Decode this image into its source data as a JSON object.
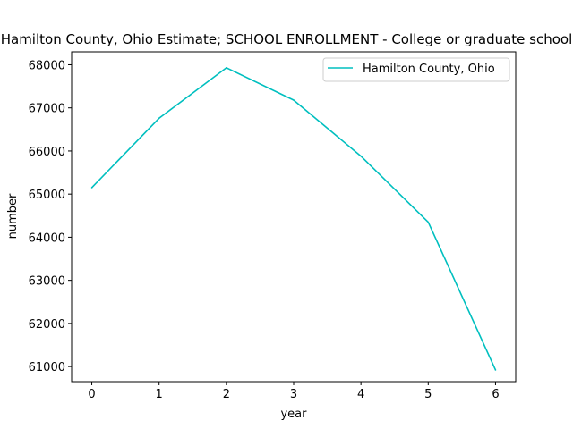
{
  "chart_data": {
    "type": "line",
    "title": "Hamilton County, Ohio Estimate; SCHOOL ENROLLMENT - College or graduate school",
    "xlabel": "year",
    "ylabel": "number",
    "x": [
      0,
      1,
      2,
      3,
      4,
      5,
      6
    ],
    "xticks": [
      "0",
      "1",
      "2",
      "3",
      "4",
      "5",
      "6"
    ],
    "yticks": [
      "61000",
      "62000",
      "63000",
      "64000",
      "65000",
      "66000",
      "67000",
      "68000"
    ],
    "ylim": [
      60650,
      68300
    ],
    "xlim": [
      -0.3,
      6.3
    ],
    "series": [
      {
        "name": "Hamilton County, Ohio",
        "color": "#00bfbf",
        "values": [
          65150,
          66760,
          67930,
          67180,
          65880,
          64350,
          60920
        ]
      }
    ],
    "legend": "top-right",
    "grid": false
  }
}
